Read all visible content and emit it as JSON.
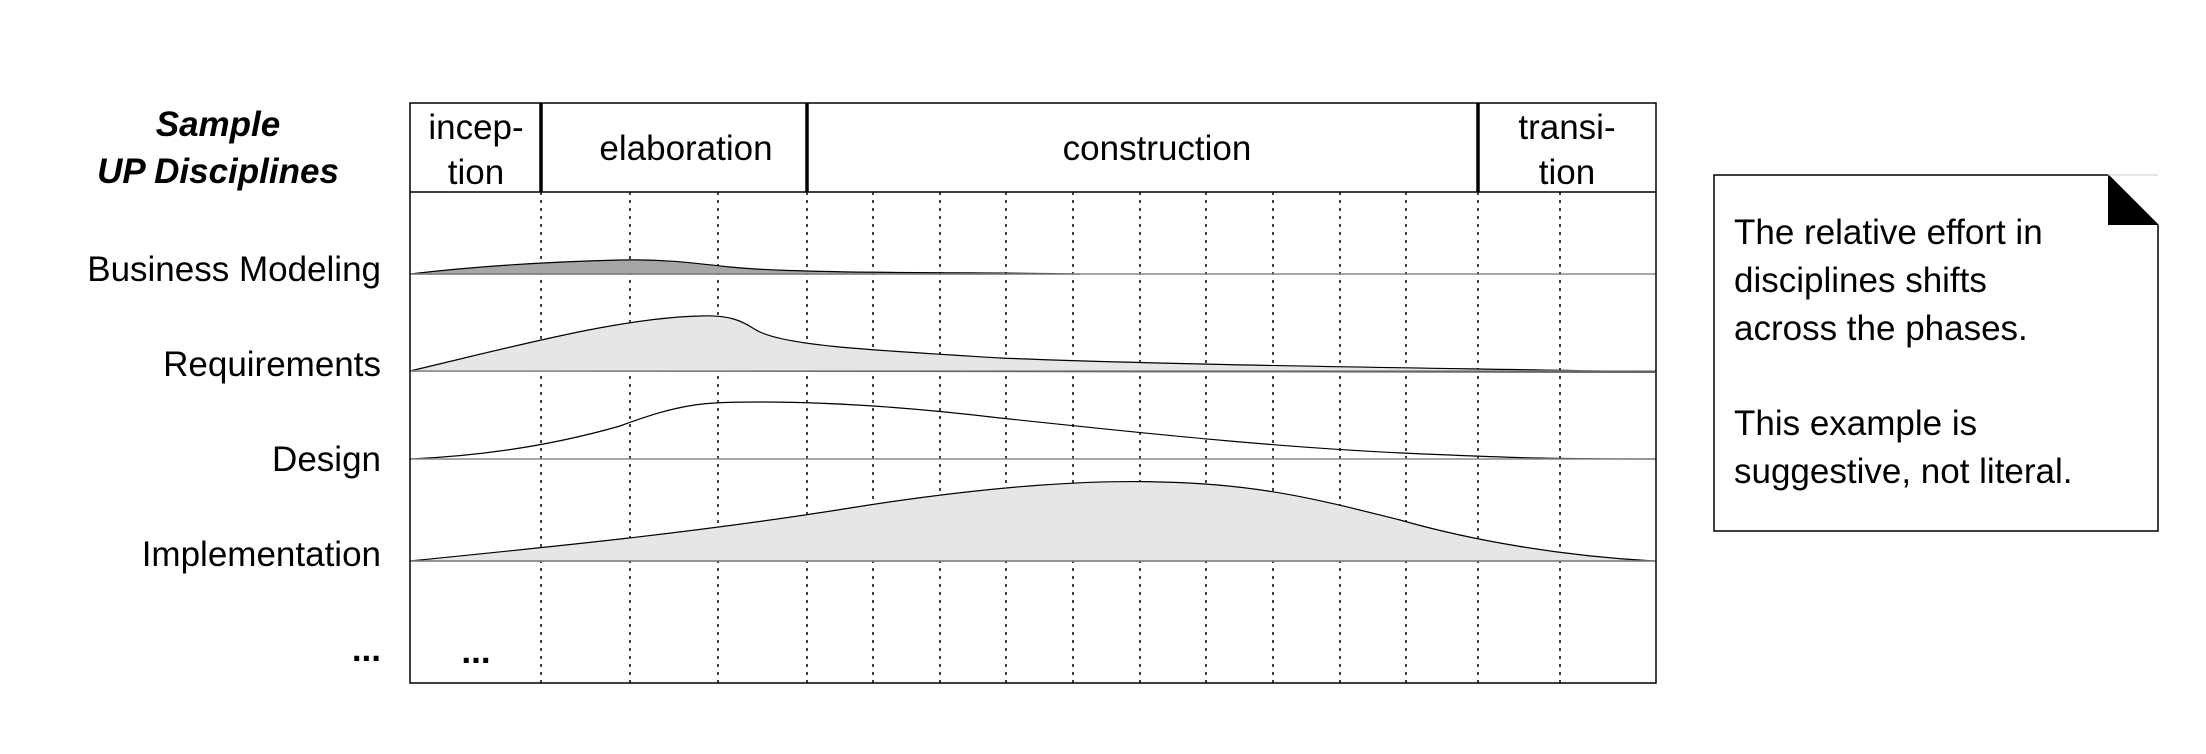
{
  "heading": {
    "line1": "Sample",
    "line2": "UP Disciplines"
  },
  "phases": [
    {
      "name": "inception",
      "lines": [
        "incep-",
        "tion"
      ]
    },
    {
      "name": "elaboration",
      "lines": [
        "elaboration"
      ]
    },
    {
      "name": "construction",
      "lines": [
        "construction"
      ]
    },
    {
      "name": "transition",
      "lines": [
        "transi-",
        "tion"
      ]
    }
  ],
  "disciplines": [
    {
      "label": "Business Modeling",
      "fill": "#a6a6a6"
    },
    {
      "label": "Requirements",
      "fill": "#e6e6e6"
    },
    {
      "label": "Design",
      "fill": "none"
    },
    {
      "label": "Implementation",
      "fill": "#e6e6e6"
    },
    {
      "label": "..."
    }
  ],
  "more_marker": "...",
  "note": {
    "paragraph1": [
      "The relative effort in",
      "disciplines shifts",
      "across the phases."
    ],
    "paragraph2": [
      "This example is",
      "suggestive, not literal."
    ]
  }
}
